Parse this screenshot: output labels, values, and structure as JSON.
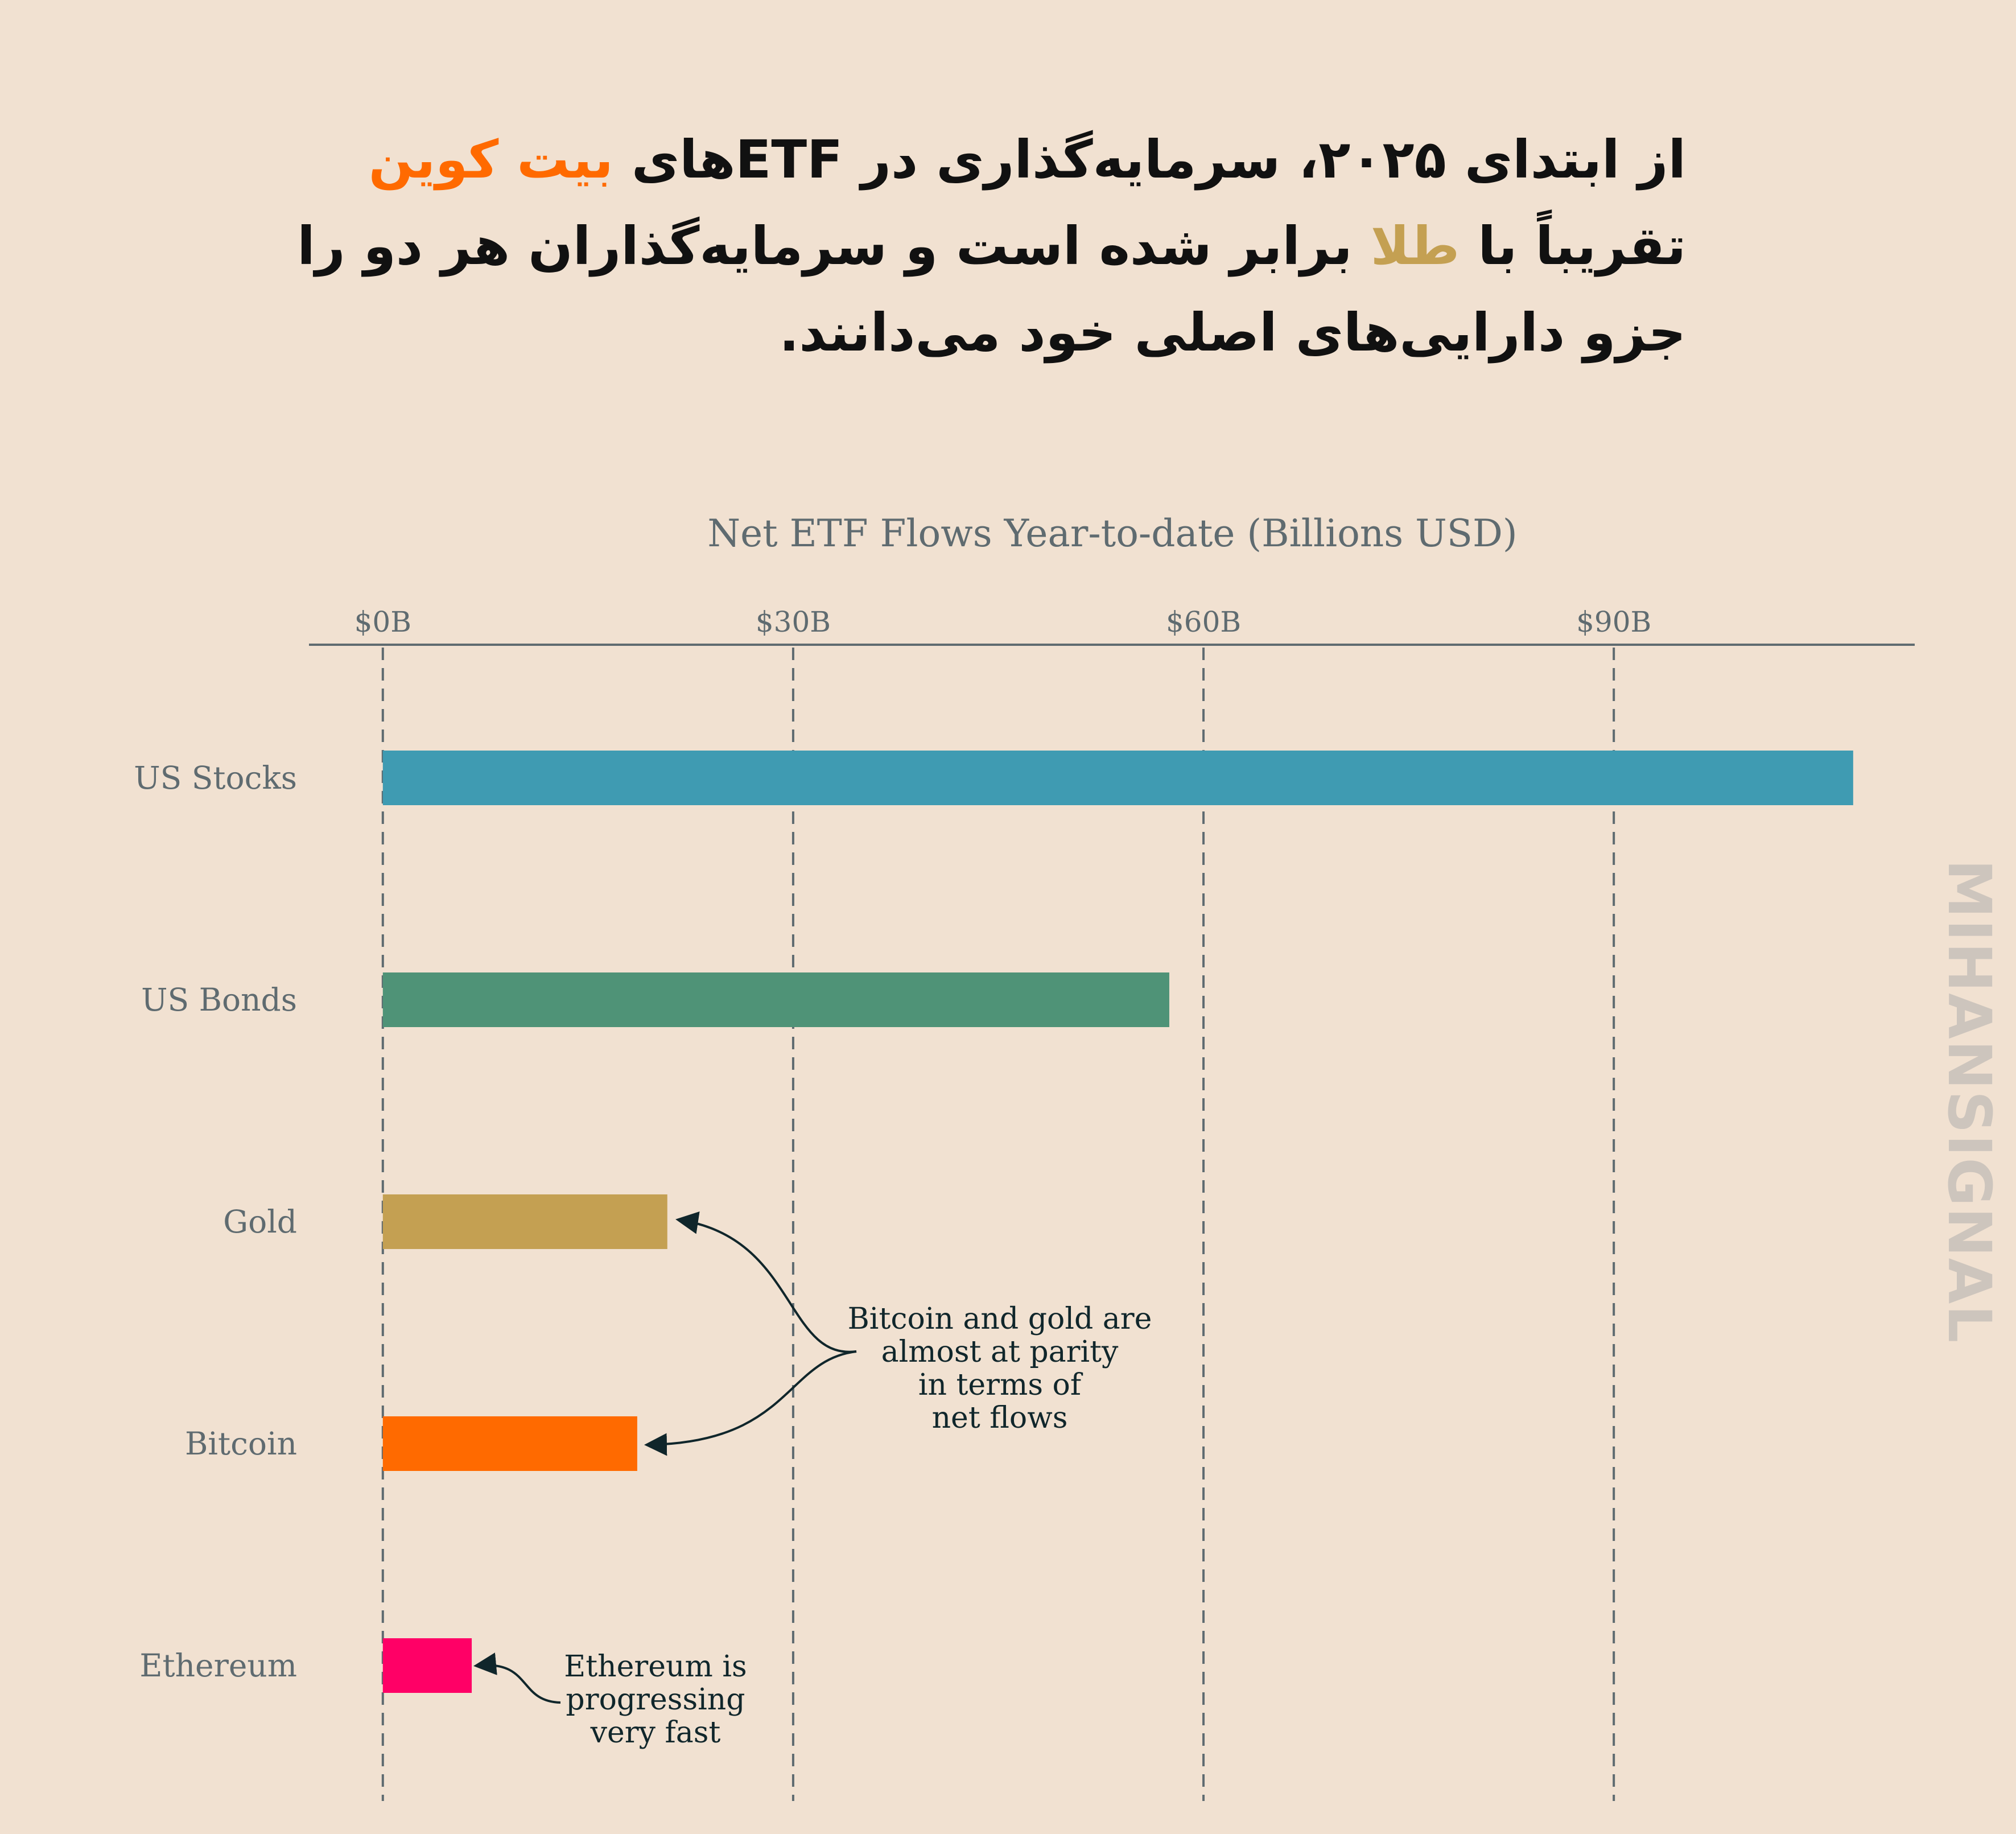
{
  "headline": {
    "line1": {
      "before": "از ابتدای ۲۰۲۵، سرمایه‌گذاری در ETFهای ",
      "highlight": "بیت کوین",
      "highlight_color": "#ff6a00"
    },
    "line2": {
      "before": "تقریباً با ",
      "highlight": "طلا",
      "highlight_color": "#c4a052",
      "after": " برابر شده است  و سرمایه‌گذاران هر دو را"
    },
    "line3": "جزو دارایی‌های اصلی خود می‌دانند."
  },
  "chart_data": {
    "type": "bar",
    "orientation": "horizontal",
    "title": "Net ETF Flows Year-to-date (Billions USD)",
    "categories": [
      "US Stocks",
      "US Bonds",
      "Gold",
      "Bitcoin",
      "Ethereum"
    ],
    "values": [
      107.5,
      57.5,
      20.8,
      18.6,
      6.5
    ],
    "colors": [
      "#3f9bb2",
      "#4f9377",
      "#c4a052",
      "#ff6a00",
      "#ff0066"
    ],
    "xticks": [
      0,
      30,
      60,
      90
    ],
    "xtick_labels": [
      "$0B",
      "$30B",
      "$60B",
      "$90B"
    ],
    "xlim": [
      -5.4,
      112
    ],
    "grid": "vertical dashed",
    "annotations": [
      {
        "text": [
          "Bitcoin and gold are",
          "almost at parity",
          "in terms of",
          "net flows"
        ],
        "targets": [
          "Gold",
          "Bitcoin"
        ]
      },
      {
        "text": [
          "Ethereum is",
          "progressing",
          "very fast"
        ],
        "targets": [
          "Ethereum"
        ]
      }
    ]
  },
  "watermark": "MIHANSIGNAL"
}
